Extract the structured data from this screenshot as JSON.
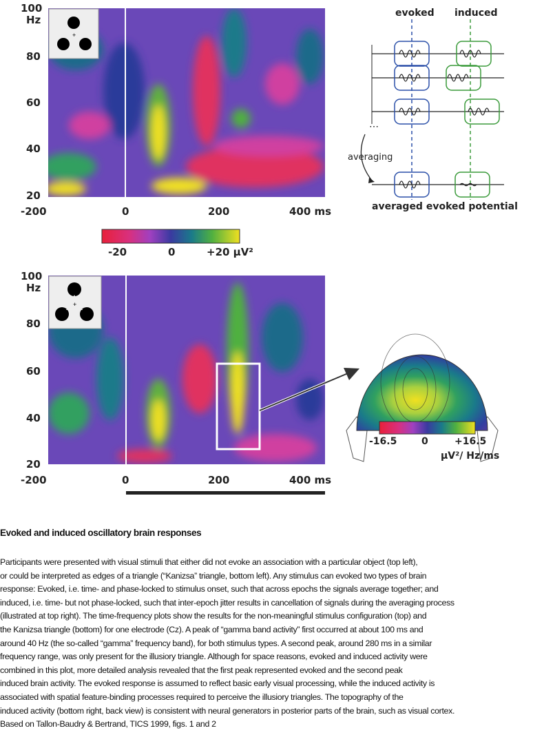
{
  "top_plot": {
    "y_ticks": [
      "100",
      "80",
      "60",
      "40",
      "20"
    ],
    "y_unit": "Hz",
    "x_ticks": [
      "-200",
      "0",
      "200",
      "400 ms"
    ],
    "colorbar": {
      "min_label": "-20",
      "mid_label": "0",
      "max_label": "+20 µV²"
    }
  },
  "diagram": {
    "evoked_label": "evoked",
    "induced_label": "induced",
    "averaging_label": "averaging",
    "result_label": "averaged evoked potential",
    "colors": {
      "evoked": "#2a4fa8",
      "induced": "#3a9a3a"
    }
  },
  "bottom_plot": {
    "y_ticks": [
      "100",
      "80",
      "60",
      "40",
      "20"
    ],
    "y_unit": "Hz",
    "x_ticks": [
      "-200",
      "0",
      "200",
      "400 ms"
    ],
    "colorbar": {
      "min_label": "-16.5",
      "mid_label": "0",
      "max_label": "+16.5",
      "unit_label": "µV²/ Hz/ms"
    }
  },
  "caption": {
    "title": "Evoked and induced oscillatory brain responses",
    "lines": [
      "Participants were presented with visual stimuli that either did not evoke an association with a particular object (top left),",
      "or could be interpreted as edges of a triangle (“Kanizsa” triangle, bottom left).  Any stimulus can evoked two types of brain",
      "response: Evoked, i.e. time- and phase-locked to stimulus onset, such that across epochs the signals average together; and",
      "induced, i.e. time- but not phase-locked, such that inter-epoch jitter results in cancellation of signals during the averaging process",
      "(illustrated at top right). The time-frequency plots show the results for the non-meaningful stimulus configuration (top) and",
      "the Kanizsa triangle (bottom) for one electrode (Cz). A peak of “gamma band activity” first occurred at about 100 ms and",
      "around 40 Hz (the so-called “gamma” frequency band), for both stimulus types. A second peak, around 280 ms in a similar",
      "frequency range, was only present for the illusiory triangle. Although for space reasons, evoked and induced activity were",
      "combined in this plot, more detailed analysis revealed that the first peak represented evoked and the second peak",
      "induced brain activity. The evoked response is assumed to reflect basic early visual processing, while the induced activity is",
      "associated with spatial feature-binding processes required to perceive the illusiory triangles. The topography of the",
      "induced activity (bottom right, back view) is consistent with neural generators in posterior parts of the brain, such as visual cortex.",
      "Based on Tallon-Baudry & Bertrand, TICS 1999, figs. 1 and 2"
    ]
  }
}
